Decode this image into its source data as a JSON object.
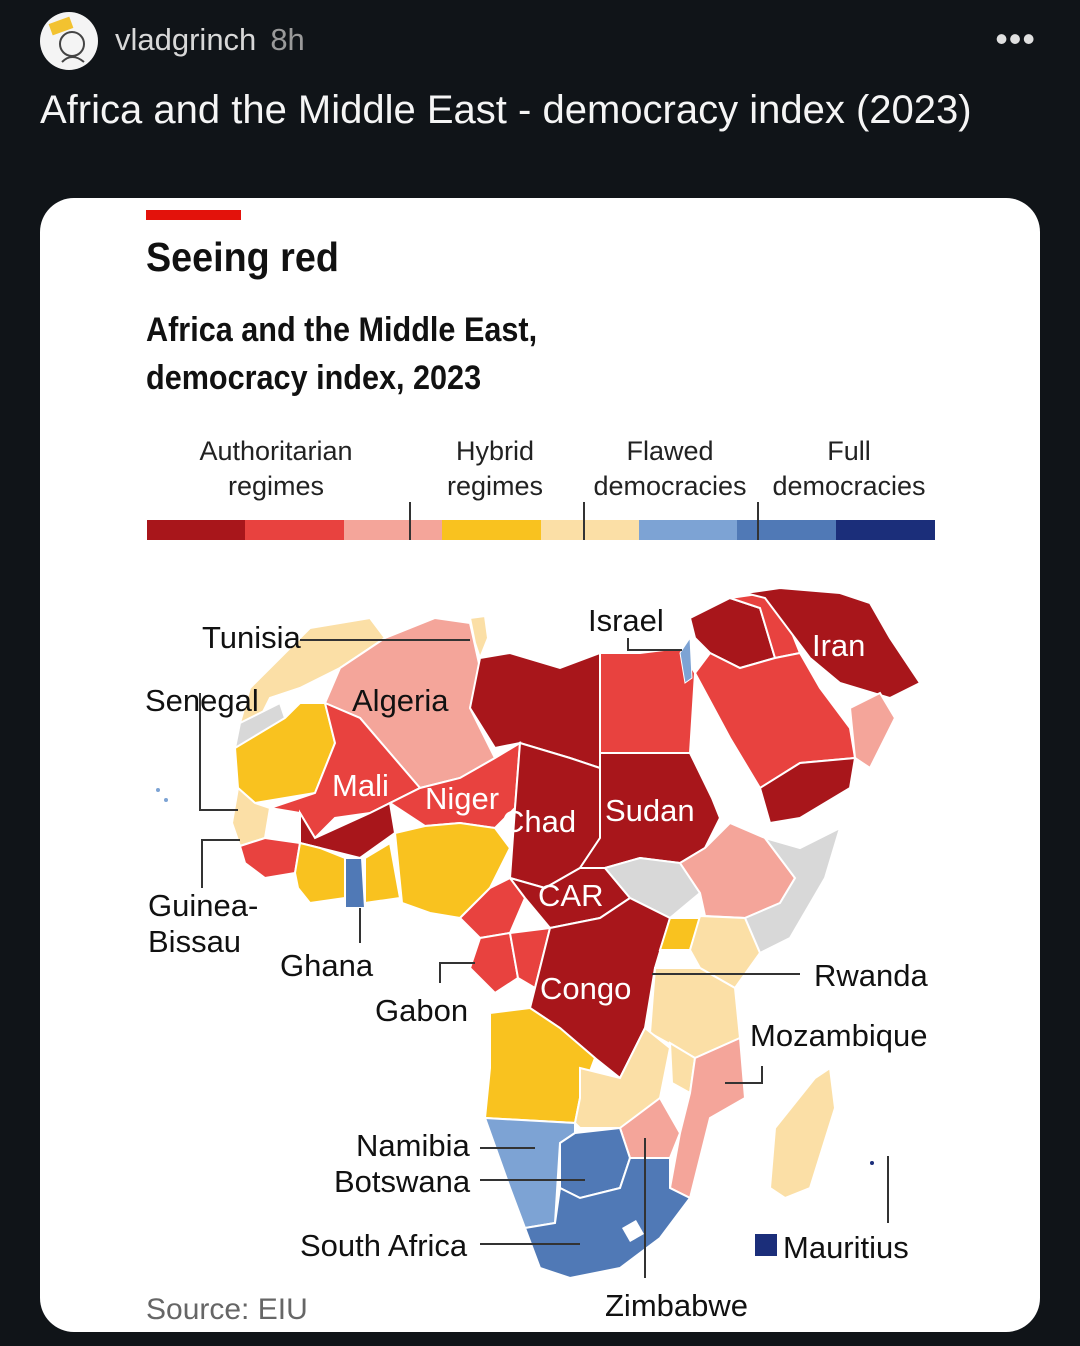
{
  "post": {
    "username": "vladgrinch",
    "time": "8h",
    "more": "•••",
    "title": "Africa and the Middle East - democracy index (2023)"
  },
  "chart": {
    "title": "Seeing red",
    "subtitle_line1": "Africa and the Middle East,",
    "subtitle_line2": "democracy index, 2023",
    "source": "Source: EIU",
    "legend": [
      {
        "line1": "Authoritarian",
        "line2": "regimes"
      },
      {
        "line1": "Hybrid",
        "line2": "regimes"
      },
      {
        "line1": "Flawed",
        "line2": "democracies"
      },
      {
        "line1": "Full",
        "line2": "democracies"
      }
    ],
    "scale_colors": [
      "#a8161b",
      "#e8423f",
      "#f4a59a",
      "#f9c21f",
      "#fbdfa6",
      "#7da3d4",
      "#5079b6",
      "#1b2e7a"
    ]
  },
  "map_labels": {
    "tunisia": "Tunisia",
    "senegal": "Senegal",
    "algeria": "Algeria",
    "mali": "Mali",
    "niger": "Niger",
    "chad": "Chad",
    "sudan": "Sudan",
    "israel": "Israel",
    "iran": "Iran",
    "guinea_bissau_1": "Guinea-",
    "guinea_bissau_2": "Bissau",
    "ghana": "Ghana",
    "gabon": "Gabon",
    "car": "CAR",
    "congo": "Congo",
    "rwanda": "Rwanda",
    "mozambique": "Mozambique",
    "namibia": "Namibia",
    "botswana": "Botswana",
    "south_africa": "South Africa",
    "zimbabwe": "Zimbabwe",
    "mauritius": "Mauritius"
  }
}
